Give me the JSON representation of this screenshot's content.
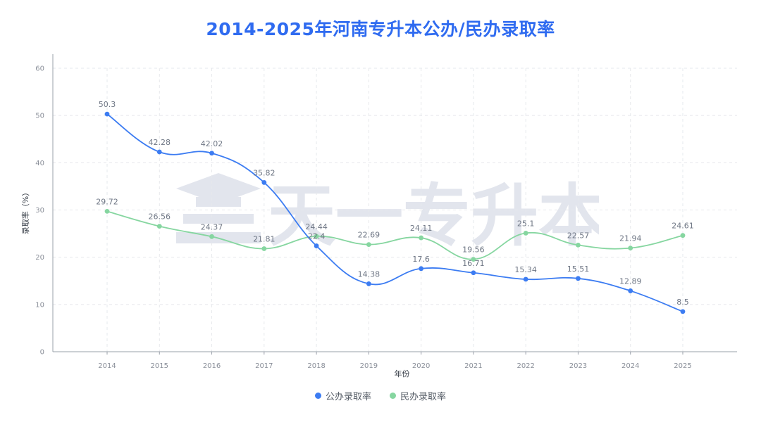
{
  "title": "2014-2025年河南专升本公办/民办录取率",
  "watermark_text": "天一专升本",
  "colors": {
    "title": "#2f6bf0",
    "public": "#3c7cf2",
    "private": "#86d6a0",
    "axis": "#9aa0aa",
    "grid": "#e6e8ec",
    "watermark": "#2c3e7a"
  },
  "chart_data": {
    "type": "line",
    "title": "2014-2025年河南专升本公办/民办录取率",
    "xlabel": "年份",
    "ylabel": "录取率（%）",
    "ylim": [
      0,
      60
    ],
    "yticks": [
      0,
      10,
      20,
      30,
      40,
      50,
      60
    ],
    "grid": true,
    "smooth": true,
    "legend_position": "bottom-center",
    "categories": [
      "2014",
      "2015",
      "2016",
      "2017",
      "2018",
      "2019",
      "2020",
      "2021",
      "2022",
      "2023",
      "2024",
      "2025"
    ],
    "series": [
      {
        "name": "公办录取率",
        "color": "#3c7cf2",
        "values": [
          50.3,
          42.28,
          42.02,
          35.82,
          22.4,
          14.38,
          17.6,
          16.71,
          15.34,
          15.51,
          12.89,
          8.5
        ],
        "labels": [
          "50.3",
          "42.28",
          "42.02",
          "35.82",
          "22.4",
          "14.38",
          "17.6",
          "16.71",
          "15.34",
          "15.51",
          "12.89",
          "8.5"
        ]
      },
      {
        "name": "民办录取率",
        "color": "#86d6a0",
        "values": [
          29.72,
          26.56,
          24.37,
          21.81,
          24.44,
          22.69,
          24.11,
          19.56,
          25.1,
          22.57,
          21.94,
          24.61
        ],
        "labels": [
          "29.72",
          "26.56",
          "24.37",
          "21.81",
          "24.44",
          "22.69",
          "24.11",
          "19.56",
          "25.1",
          "22.57",
          "21.94",
          "24.61"
        ]
      }
    ]
  }
}
